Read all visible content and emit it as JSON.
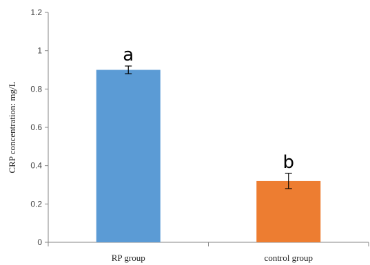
{
  "chart_data": {
    "type": "bar",
    "categories": [
      "RP group",
      "control group"
    ],
    "values": [
      0.9,
      0.32
    ],
    "errors": [
      0.02,
      0.04
    ],
    "significance_labels": [
      "a",
      "b"
    ],
    "colors": [
      "#5b9bd5",
      "#ed7d31"
    ],
    "title": "",
    "xlabel": "",
    "ylabel": "CRP concentration: mg/L",
    "ylim": [
      0,
      1.2
    ],
    "yticks": [
      0,
      0.2,
      0.4,
      0.6,
      0.8,
      1,
      1.2
    ],
    "ytick_labels": [
      "0",
      "0.2",
      "0.4",
      "0.6",
      "0.8",
      "1",
      "1.2"
    ],
    "grid": false,
    "legend": "none"
  }
}
